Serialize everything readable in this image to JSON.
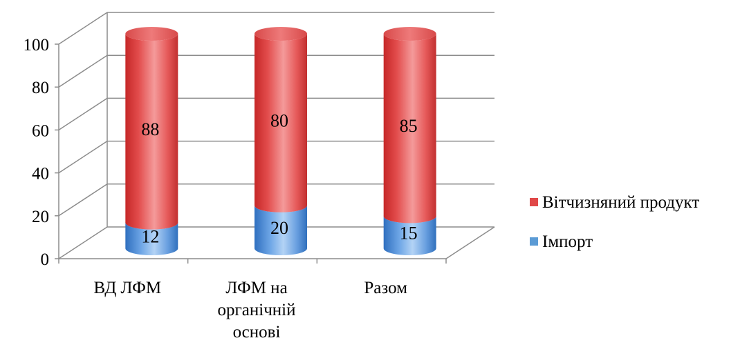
{
  "chart_data": {
    "type": "bar",
    "stacked": true,
    "style": "3d-cylinder",
    "categories": [
      [
        "ВД ЛФМ"
      ],
      [
        "ЛФМ на",
        "органічній",
        "основі"
      ],
      [
        "Разом"
      ]
    ],
    "series": [
      {
        "name": "Імпорт",
        "values": [
          12,
          20,
          15
        ],
        "labels": [
          "12",
          "20",
          "15"
        ],
        "color": "#5b9bd5"
      },
      {
        "name": "Вітчизняний продукт",
        "values": [
          88,
          80,
          85
        ],
        "labels": [
          "88",
          "80",
          "85"
        ],
        "color": "#e04848"
      }
    ],
    "yticks": [
      "0",
      "20",
      "40",
      "60",
      "80",
      "100"
    ],
    "ylim": [
      0,
      100
    ],
    "grid": true,
    "legend": "right",
    "legend_order": [
      "Вітчизняний продукт",
      "Імпорт"
    ],
    "title": "",
    "xlabel": "",
    "ylabel": ""
  }
}
